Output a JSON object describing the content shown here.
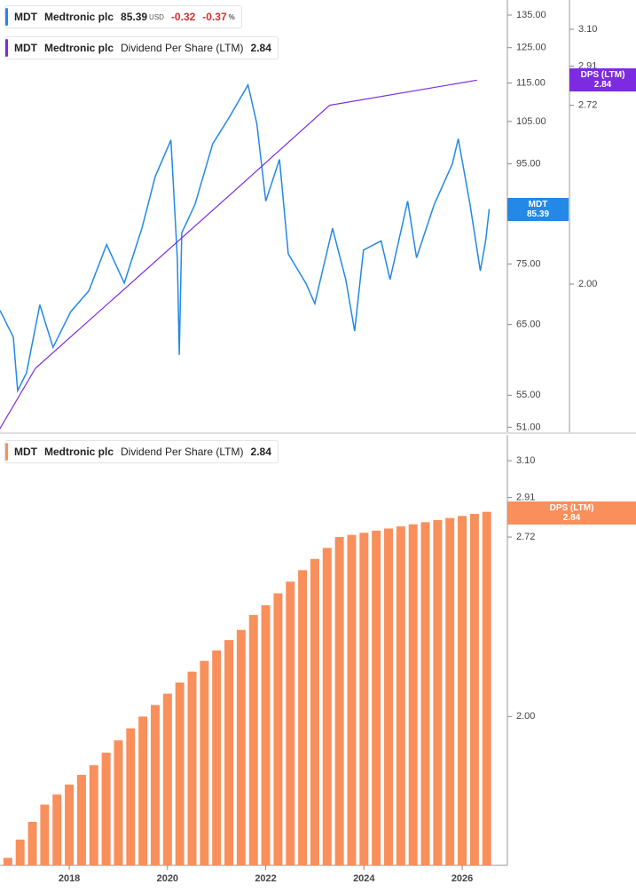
{
  "chart_data": [
    {
      "type": "line",
      "log_scale": true,
      "xlim": [
        2016.59,
        2026.92
      ],
      "ylim": [
        50.4,
        139.9
      ],
      "yticks": [
        {
          "value": 135,
          "label": "135.00"
        },
        {
          "value": 125,
          "label": "125.00"
        },
        {
          "value": 115,
          "label": "115.00"
        },
        {
          "value": 105,
          "label": "105.00"
        },
        {
          "value": 95,
          "label": "95.00"
        },
        {
          "value": 75,
          "label": "75.00"
        },
        {
          "value": 65,
          "label": "65.00"
        },
        {
          "value": 55,
          "label": "55.00"
        },
        {
          "value": 51,
          "label": "51.00"
        }
      ],
      "y2lim": [
        1.55,
        3.26
      ],
      "y2ticks": [
        {
          "value": 3.1,
          "label": "3.10"
        },
        2.91,
        2.72,
        {
          "value": 2,
          "label": "2.00"
        }
      ],
      "legend": {
        "symbol": "MDT",
        "company": "Medtronic plc",
        "currency": "USD",
        "change": -0.32,
        "change_pct": -0.37,
        "pct_unit": "%",
        "metric": "Dividend Per Share (LTM)"
      },
      "series": [
        {
          "name": "MDT",
          "color": "#2388e6",
          "x": [
            2016.59,
            2016.86,
            2016.95,
            2017.13,
            2017.4,
            2017.67,
            2018.03,
            2018.4,
            2018.76,
            2019.12,
            2019.48,
            2019.75,
            2020.07,
            2020.2,
            2020.24,
            2020.29,
            2020.56,
            2020.92,
            2021.28,
            2021.64,
            2021.82,
            2022.0,
            2022.28,
            2022.46,
            2022.82,
            2023.0,
            2023.36,
            2023.63,
            2023.81,
            2023.99,
            2024.35,
            2024.53,
            2024.89,
            2025.07,
            2025.43,
            2025.8,
            2025.92,
            2026.16,
            2026.37,
            2026.48,
            2026.55
          ],
          "values": [
            67.2,
            63.1,
            55.6,
            58,
            68.1,
            61.6,
            67,
            70.4,
            78.5,
            71.7,
            81.6,
            92.2,
            100.5,
            76.1,
            60.5,
            80.7,
            86.3,
            99.6,
            106.5,
            114.5,
            104.4,
            87,
            96,
            76.8,
            71.6,
            68.3,
            81.6,
            72.3,
            64,
            77.5,
            79.2,
            72.3,
            87,
            76.1,
            86.3,
            95,
            100.8,
            86.3,
            73.8,
            79.3,
            85.39
          ]
        },
        {
          "name": "DPS (LTM)",
          "color": "#7c2be0",
          "axis": "y2",
          "x": [
            2016.59,
            2017.31,
            2021.32,
            2023.3,
            2026.3
          ],
          "values": [
            1.56,
            1.73,
            2.34,
            2.72,
            2.84
          ]
        }
      ]
    },
    {
      "type": "bar",
      "log_scale": true,
      "xlim": [
        2016.59,
        2026.92
      ],
      "xticks": [
        2018,
        2020,
        2022,
        2024,
        2026
      ],
      "ylim": [
        1.55,
        3.24
      ],
      "yticks": [
        {
          "value": 3.1,
          "label": "3.10"
        },
        2.91,
        2.72,
        {
          "value": 2,
          "label": "2.00"
        }
      ],
      "legend": {
        "symbol": "MDT",
        "company": "Medtronic plc",
        "metric": "Dividend Per Share (LTM)"
      },
      "series": [
        {
          "name": "DPS (LTM)",
          "color": "#f98f5b",
          "x": [
            2016.75,
            2017.0,
            2017.25,
            2017.5,
            2017.75,
            2018.0,
            2018.25,
            2018.5,
            2018.75,
            2019.0,
            2019.25,
            2019.5,
            2019.75,
            2020.0,
            2020.25,
            2020.5,
            2020.75,
            2021.0,
            2021.25,
            2021.5,
            2021.75,
            2022.0,
            2022.25,
            2022.5,
            2022.75,
            2023.0,
            2023.25,
            2023.5,
            2023.75,
            2024.0,
            2024.25,
            2024.5,
            2024.75,
            2025.0,
            2025.25,
            2025.5,
            2025.75,
            2026.0,
            2026.25,
            2026.5
          ],
          "values": [
            1.57,
            1.62,
            1.67,
            1.72,
            1.75,
            1.78,
            1.81,
            1.84,
            1.88,
            1.92,
            1.96,
            2.0,
            2.04,
            2.08,
            2.12,
            2.16,
            2.2,
            2.24,
            2.28,
            2.32,
            2.38,
            2.42,
            2.47,
            2.52,
            2.57,
            2.62,
            2.67,
            2.72,
            2.73,
            2.74,
            2.75,
            2.76,
            2.77,
            2.78,
            2.79,
            2.8,
            2.81,
            2.82,
            2.83,
            2.84
          ]
        }
      ]
    }
  ]
}
